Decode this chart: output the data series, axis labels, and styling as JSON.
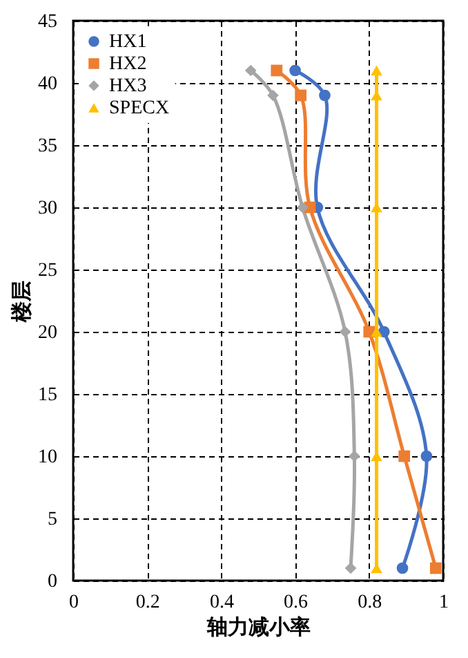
{
  "chart_data": {
    "type": "line",
    "xlabel": "轴力减小率",
    "ylabel": "楼层",
    "xlim": [
      0,
      1
    ],
    "xticks": [
      0,
      0.2,
      0.4,
      0.6,
      0.8,
      1
    ],
    "ylim": [
      0,
      45
    ],
    "yticks": [
      0,
      5,
      10,
      15,
      20,
      25,
      30,
      35,
      40,
      45
    ],
    "grid": true,
    "legend": "top left",
    "line_style": "solid",
    "series": [
      {
        "name": "HX1",
        "color": "#4472c4",
        "marker": "circle",
        "x": [
          0.89,
          0.955,
          0.84,
          0.66,
          0.68,
          0.6
        ],
        "values": [
          1,
          10,
          20,
          30,
          39,
          41
        ]
      },
      {
        "name": "HX2",
        "color": "#ed7d31",
        "marker": "square",
        "x": [
          0.98,
          0.895,
          0.8,
          0.64,
          0.615,
          0.55
        ],
        "values": [
          1,
          10,
          20,
          30,
          39,
          41
        ]
      },
      {
        "name": "HX3",
        "color": "#a5a5a5",
        "marker": "diamond",
        "x": [
          0.75,
          0.76,
          0.735,
          0.62,
          0.54,
          0.48
        ],
        "values": [
          1,
          10,
          20,
          30,
          39,
          41
        ]
      },
      {
        "name": "SPECX",
        "color": "#ffc000",
        "marker": "triangle",
        "x": [
          0.82,
          0.82,
          0.82,
          0.82,
          0.82,
          0.82
        ],
        "values": [
          1,
          10,
          20,
          30,
          39,
          41
        ]
      }
    ]
  }
}
